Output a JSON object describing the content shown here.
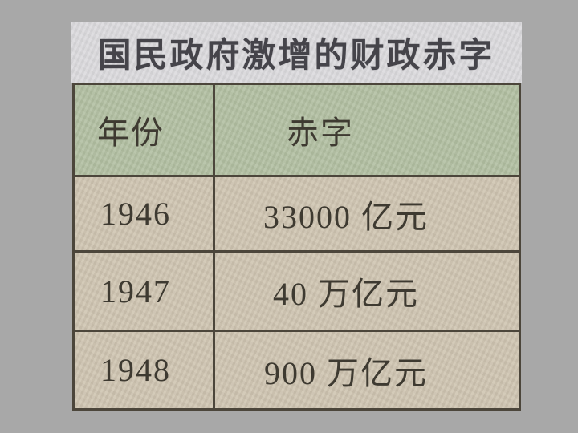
{
  "slide": {
    "title": "国民政府激增的财政赤字"
  },
  "table": {
    "columns": [
      {
        "label": "年份"
      },
      {
        "label": "赤字"
      }
    ],
    "rows": [
      {
        "year": "1946",
        "deficit": "33000 亿元"
      },
      {
        "year": "1947",
        "deficit": "40 万亿元"
      },
      {
        "year": "1948",
        "deficit": "900 万亿元"
      }
    ]
  },
  "colors": {
    "page_background": "#a8a8a8",
    "title_background": "#dcdbde",
    "header_background": "#b2c0a2",
    "row_background": "#cfc5b1",
    "border": "#4c463b",
    "text": "#3e3a31",
    "title_text": "#45444a"
  },
  "chart_data": {
    "type": "table",
    "title": "国民政府激增的财政赤字",
    "columns": [
      "年份",
      "赤字"
    ],
    "rows": [
      [
        "1946",
        "33000 亿元"
      ],
      [
        "1947",
        "40 万亿元"
      ],
      [
        "1948",
        "900 万亿元"
      ]
    ]
  }
}
